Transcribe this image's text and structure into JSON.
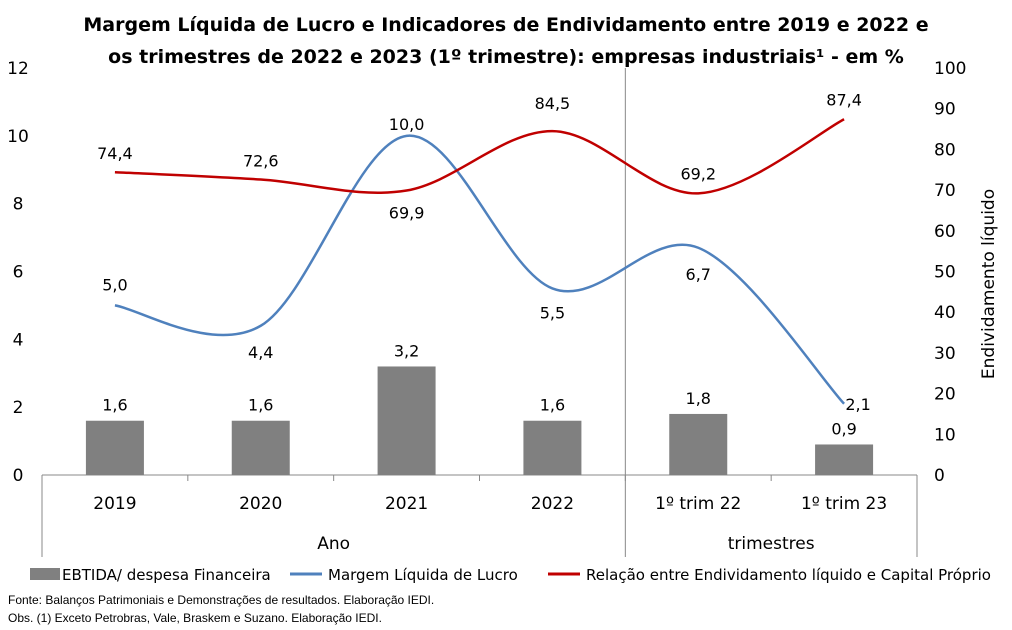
{
  "chart_data": {
    "type": "bar+line",
    "title_line1": "Margem Líquida de Lucro e Indicadores de Endividamento entre 2019 e 2022 e",
    "title_line2": "os trimestres de 2022 e 2023 (1º trimestre): empresas industriais¹ - em %",
    "categories": [
      "2019",
      "2020",
      "2021",
      "2022",
      "1º trim 22",
      "1º trim 23"
    ],
    "groups": [
      {
        "label": "Ano",
        "from": 0,
        "to": 3
      },
      {
        "label": "trimestres",
        "from": 4,
        "to": 5
      }
    ],
    "y_left": {
      "min": 0,
      "max": 12,
      "step": 2,
      "ticks": [
        "0",
        "2",
        "4",
        "6",
        "8",
        "10",
        "12"
      ]
    },
    "y_right": {
      "min": 0,
      "max": 100,
      "step": 10,
      "label": "Endividamento líquido",
      "ticks": [
        "0",
        "10",
        "20",
        "30",
        "40",
        "50",
        "60",
        "70",
        "80",
        "90",
        "100"
      ]
    },
    "series": [
      {
        "name": "EBTIDA/ despesa Financeira",
        "kind": "bar",
        "axis": "left",
        "color": "#808080",
        "values": [
          1.6,
          1.6,
          3.2,
          1.6,
          1.8,
          0.9
        ],
        "labels": [
          "1,6",
          "1,6",
          "3,2",
          "1,6",
          "1,8",
          "0,9"
        ]
      },
      {
        "name": "Margem Líquida de Lucro",
        "kind": "line",
        "axis": "left",
        "color": "#4F81BD",
        "values": [
          5.0,
          4.4,
          10.0,
          5.5,
          6.7,
          2.1
        ],
        "labels": [
          "5,0",
          "4,4",
          "10,0",
          "5,5",
          "6,7",
          "2,1"
        ]
      },
      {
        "name": "Relação entre Endividamento líquido e Capital Próprio",
        "kind": "line",
        "axis": "right",
        "color": "#C00000",
        "values": [
          74.4,
          72.6,
          69.9,
          84.5,
          69.2,
          87.4
        ],
        "labels": [
          "74,4",
          "72,6",
          "69,9",
          "84,5",
          "69,2",
          "87,4"
        ]
      }
    ],
    "grid": false,
    "legend_position": "bottom"
  },
  "notes": {
    "source": "Fonte: Balanços Patrimoniais e Demonstrações de resultados. Elaboração IEDI.",
    "obs": "Obs. (1) Exceto Petrobras, Vale, Braskem e Suzano. Elaboração IEDI."
  }
}
